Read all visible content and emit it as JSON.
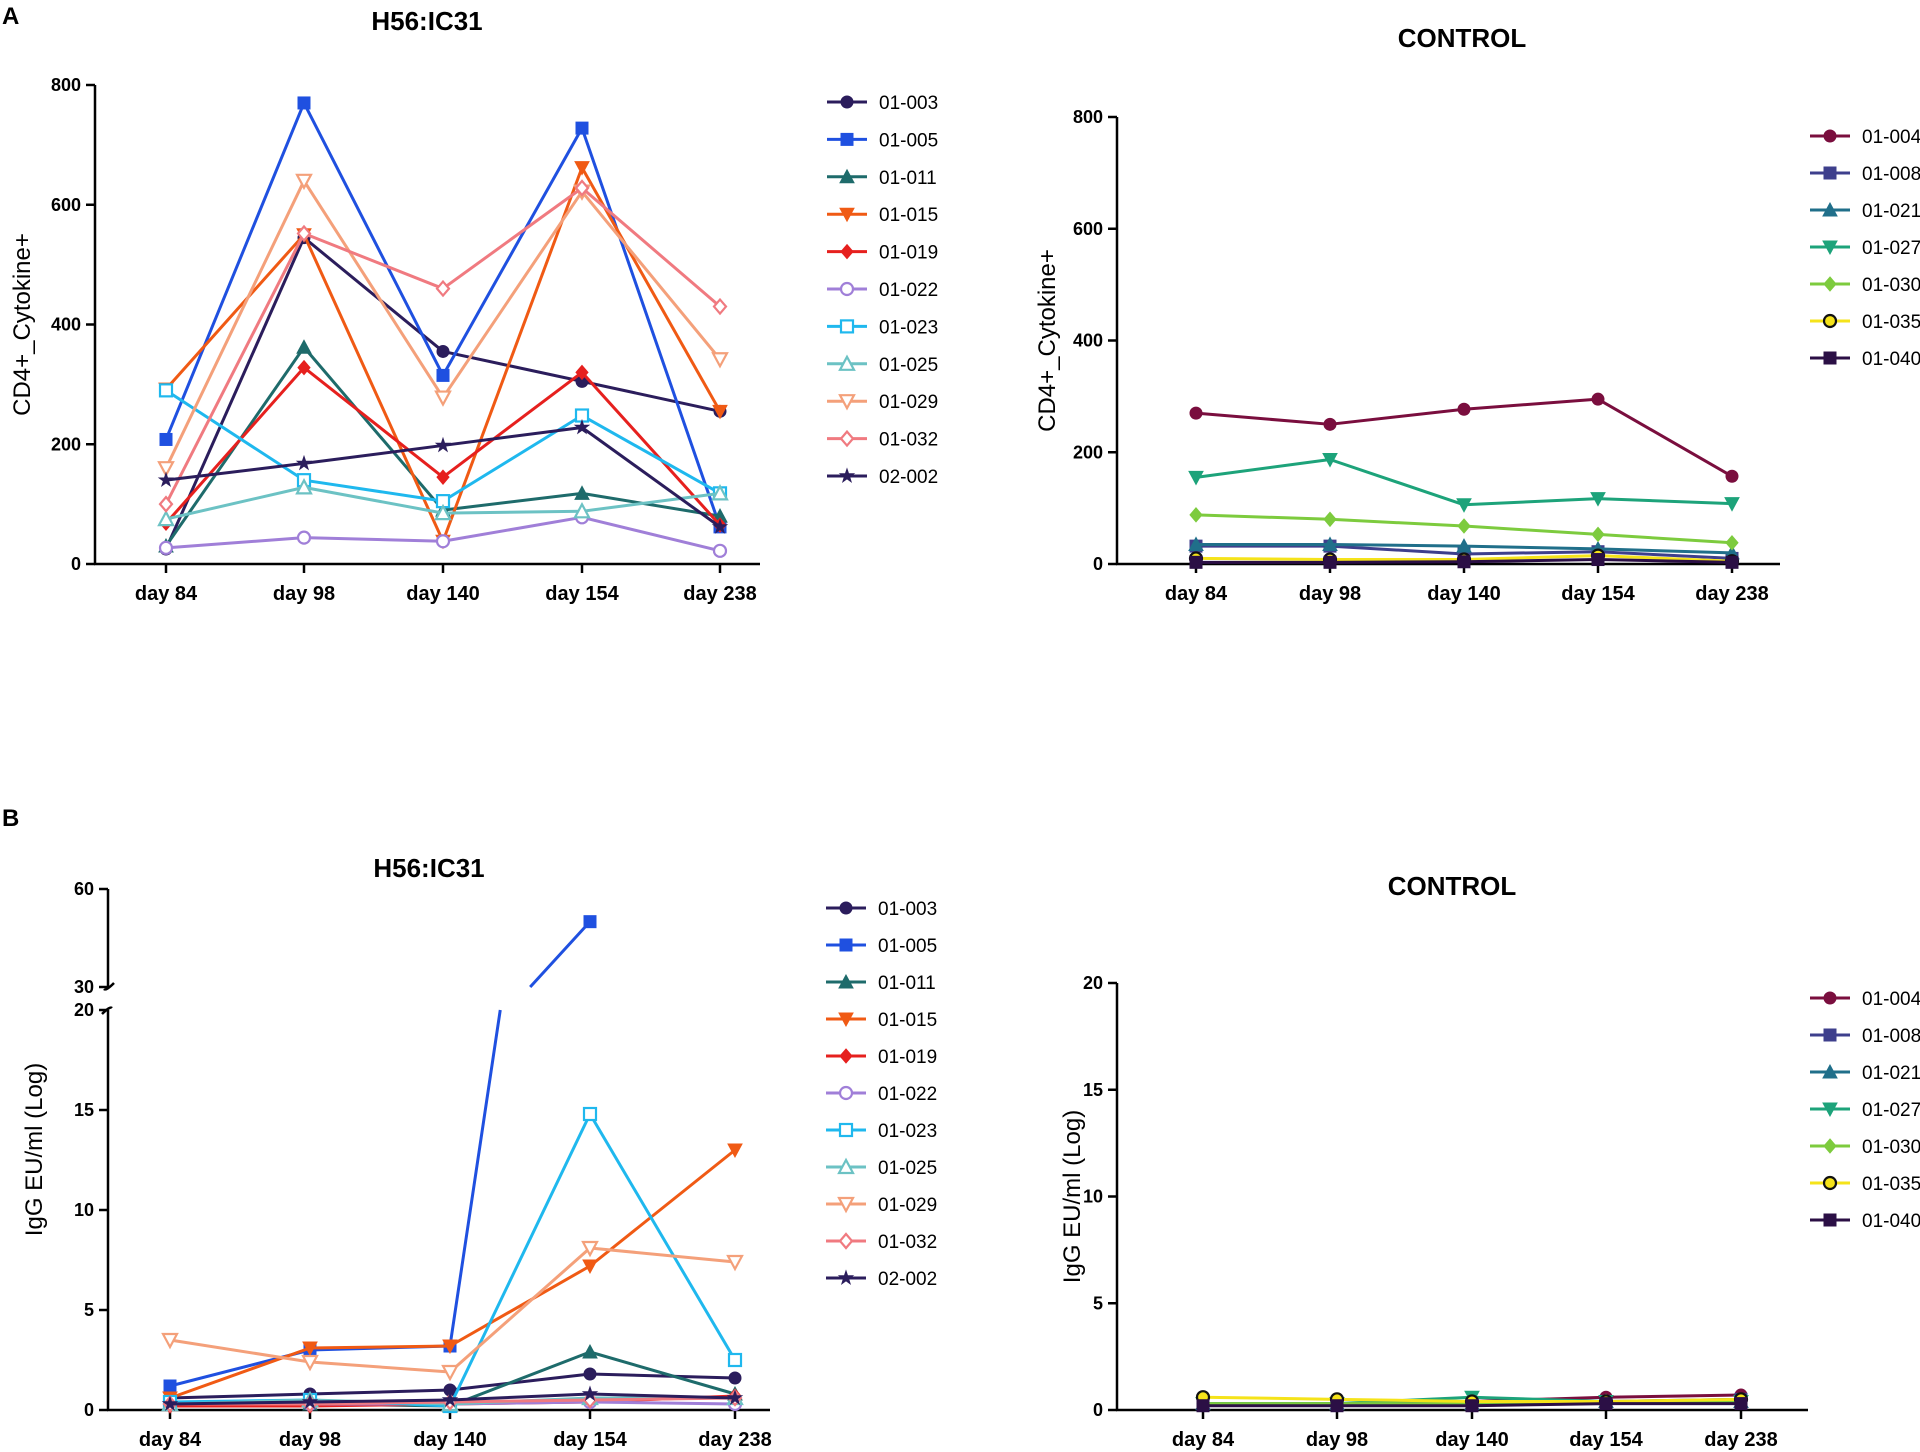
{
  "panel_labels": [
    "A",
    "B"
  ],
  "chart_data": [
    {
      "id": "A-left",
      "type": "line",
      "title": "H56:IC31",
      "xlabel": "",
      "ylabel": "CD4+_Cytokine+",
      "categories": [
        "day 84",
        "day 98",
        "day 140",
        "day 154",
        "day 238"
      ],
      "ylim": [
        0,
        800
      ],
      "yticks": [
        0,
        200,
        400,
        600,
        800
      ],
      "legend": "right",
      "series": [
        {
          "name": "01-003",
          "color": "#2b1d5c",
          "marker": "circle",
          "values": [
            25,
            545,
            355,
            305,
            255
          ]
        },
        {
          "name": "01-005",
          "color": "#1f50e0",
          "marker": "square",
          "values": [
            208,
            770,
            315,
            728,
            62
          ]
        },
        {
          "name": "01-011",
          "color": "#1e6b6b",
          "marker": "triangle",
          "values": [
            30,
            362,
            90,
            118,
            80
          ]
        },
        {
          "name": "01-015",
          "color": "#f05a14",
          "marker": "triangle-down",
          "values": [
            292,
            550,
            38,
            662,
            255
          ]
        },
        {
          "name": "01-019",
          "color": "#e6201e",
          "marker": "diamond",
          "values": [
            68,
            328,
            145,
            320,
            65
          ]
        },
        {
          "name": "01-022",
          "color": "#a07fd8",
          "marker": "circle-open",
          "values": [
            27,
            44,
            38,
            78,
            22
          ]
        },
        {
          "name": "01-023",
          "color": "#1fb8ee",
          "marker": "square-open",
          "values": [
            290,
            140,
            105,
            248,
            118
          ]
        },
        {
          "name": "01-025",
          "color": "#6cc2c4",
          "marker": "triangle-open",
          "values": [
            75,
            128,
            85,
            88,
            118
          ]
        },
        {
          "name": "01-029",
          "color": "#f4a07a",
          "marker": "triangle-down-open",
          "values": [
            160,
            640,
            278,
            622,
            342
          ]
        },
        {
          "name": "01-032",
          "color": "#f07a80",
          "marker": "diamond-open",
          "values": [
            100,
            552,
            460,
            628,
            430
          ]
        },
        {
          "name": "02-002",
          "color": "#2b1d5c",
          "marker": "star",
          "values": [
            140,
            168,
            198,
            228,
            62
          ]
        }
      ]
    },
    {
      "id": "A-right",
      "type": "line",
      "title": "CONTROL",
      "xlabel": "",
      "ylabel": "CD4+_Cytokine+",
      "categories": [
        "day 84",
        "day 98",
        "day 140",
        "day 154",
        "day 238"
      ],
      "ylim": [
        0,
        800
      ],
      "yticks": [
        0,
        200,
        400,
        600,
        800
      ],
      "legend": "right",
      "series": [
        {
          "name": "01-004",
          "color": "#7a0e3e",
          "marker": "circle",
          "values": [
            270,
            250,
            277,
            295,
            157
          ]
        },
        {
          "name": "01-008",
          "color": "#3e3f8c",
          "marker": "square",
          "values": [
            32,
            32,
            18,
            22,
            10
          ]
        },
        {
          "name": "01-021",
          "color": "#206f8a",
          "marker": "triangle",
          "values": [
            35,
            35,
            32,
            27,
            20
          ]
        },
        {
          "name": "01-027",
          "color": "#1da37a",
          "marker": "triangle-down",
          "values": [
            155,
            187,
            106,
            117,
            108
          ]
        },
        {
          "name": "01-030",
          "color": "#7dcb3e",
          "marker": "diamond",
          "values": [
            88,
            80,
            68,
            53,
            38
          ]
        },
        {
          "name": "01-035",
          "color": "#f5e31a",
          "marker": "circle-open",
          "values": [
            10,
            8,
            8,
            15,
            5
          ]
        },
        {
          "name": "01-040",
          "color": "#2b0f45",
          "marker": "square",
          "values": [
            3,
            3,
            4,
            8,
            3
          ]
        }
      ]
    },
    {
      "id": "B-left",
      "type": "line",
      "title": "H56:IC31",
      "xlabel": "",
      "ylabel": "IgG EU/ml (Log)",
      "categories": [
        "day 84",
        "day 98",
        "day 140",
        "day 154",
        "day 238"
      ],
      "ylim": [
        0,
        60
      ],
      "yticks": [
        0,
        5,
        10,
        15,
        20,
        30,
        60
      ],
      "axis_break": [
        20,
        30
      ],
      "legend": "right",
      "series": [
        {
          "name": "01-003",
          "color": "#2b1d5c",
          "marker": "circle",
          "values": [
            0.6,
            0.8,
            1.0,
            1.8,
            1.6
          ]
        },
        {
          "name": "01-005",
          "color": "#1f50e0",
          "marker": "square",
          "values": [
            1.2,
            3.0,
            3.2,
            50,
            null
          ]
        },
        {
          "name": "01-011",
          "color": "#1e6b6b",
          "marker": "triangle",
          "values": [
            0.3,
            0.3,
            0.2,
            2.9,
            0.8
          ]
        },
        {
          "name": "01-015",
          "color": "#f05a14",
          "marker": "triangle-down",
          "values": [
            0.6,
            3.1,
            3.2,
            7.2,
            13.0
          ]
        },
        {
          "name": "01-019",
          "color": "#e6201e",
          "marker": "diamond",
          "values": [
            0.2,
            0.2,
            0.3,
            0.4,
            0.7
          ]
        },
        {
          "name": "01-022",
          "color": "#a07fd8",
          "marker": "circle-open",
          "values": [
            0.3,
            0.3,
            0.3,
            0.4,
            0.3
          ]
        },
        {
          "name": "01-023",
          "color": "#1fb8ee",
          "marker": "square-open",
          "values": [
            0.4,
            0.5,
            0.2,
            14.8,
            2.5
          ]
        },
        {
          "name": "01-025",
          "color": "#6cc2c4",
          "marker": "triangle-open",
          "values": [
            0.3,
            0.5,
            0.3,
            0.6,
            0.6
          ]
        },
        {
          "name": "01-029",
          "color": "#f4a07a",
          "marker": "triangle-down-open",
          "values": [
            3.5,
            2.4,
            1.9,
            8.1,
            7.4
          ]
        },
        {
          "name": "01-032",
          "color": "#f07a80",
          "marker": "diamond-open",
          "values": [
            0.3,
            0.3,
            0.4,
            0.5,
            0.6
          ]
        },
        {
          "name": "02-002",
          "color": "#2b1d5c",
          "marker": "star",
          "values": [
            0.3,
            0.4,
            0.5,
            0.8,
            0.6
          ]
        }
      ]
    },
    {
      "id": "B-right",
      "type": "line",
      "title": "CONTROL",
      "xlabel": "",
      "ylabel": "IgG EU/ml (Log)",
      "categories": [
        "day 84",
        "day 98",
        "day 140",
        "day 154",
        "day 238"
      ],
      "ylim": [
        0,
        20
      ],
      "yticks": [
        0,
        5,
        10,
        15,
        20
      ],
      "legend": "right",
      "series": [
        {
          "name": "01-004",
          "color": "#7a0e3e",
          "marker": "circle",
          "values": [
            0.3,
            0.3,
            0.4,
            0.6,
            0.7
          ]
        },
        {
          "name": "01-008",
          "color": "#3e3f8c",
          "marker": "square",
          "values": [
            0.3,
            0.3,
            0.3,
            0.4,
            0.5
          ]
        },
        {
          "name": "01-021",
          "color": "#206f8a",
          "marker": "triangle",
          "values": [
            0.3,
            0.3,
            0.3,
            0.4,
            0.4
          ]
        },
        {
          "name": "01-027",
          "color": "#1da37a",
          "marker": "triangle-down",
          "values": [
            0.3,
            0.3,
            0.6,
            0.4,
            0.4
          ]
        },
        {
          "name": "01-030",
          "color": "#7dcb3e",
          "marker": "diamond",
          "values": [
            0.3,
            0.3,
            0.3,
            0.4,
            0.4
          ]
        },
        {
          "name": "01-035",
          "color": "#f5e31a",
          "marker": "circle-open",
          "values": [
            0.6,
            0.5,
            0.4,
            0.4,
            0.5
          ]
        },
        {
          "name": "01-040",
          "color": "#2b0f45",
          "marker": "square",
          "values": [
            0.2,
            0.2,
            0.2,
            0.3,
            0.3
          ]
        }
      ]
    }
  ]
}
